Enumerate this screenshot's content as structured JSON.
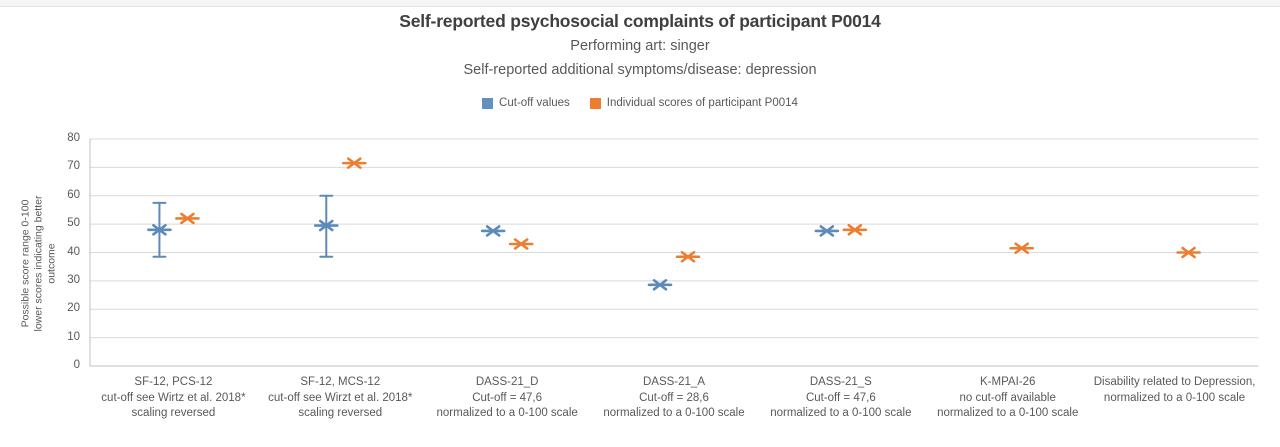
{
  "chart_data": {
    "type": "scatter",
    "title": "Self-reported psychosocial complaints of participant P0014",
    "subtitle1": "Performing art: singer",
    "subtitle2": "Self-reported additional symptoms/disease: depression",
    "ylabel_lines": [
      "Possible score range 0-100",
      "lower scores indicating better",
      "outcome"
    ],
    "ylim": [
      0,
      80
    ],
    "ytick_step": 10,
    "yticks": [
      0,
      10,
      20,
      30,
      40,
      50,
      60,
      70,
      80
    ],
    "grid": "horizontal",
    "legend_position": "top",
    "legend": [
      {
        "name": "Cut-off values",
        "color": "#6590BE"
      },
      {
        "name": "Individual scores of participant P0014",
        "color": "#ED7D31"
      }
    ],
    "categories": [
      {
        "label_lines": [
          "SF-12, PCS-12",
          "cut-off see Wirtz et al. 2018*",
          "scaling reversed"
        ]
      },
      {
        "label_lines": [
          "SF-12, MCS-12",
          "cut-off see Wirzt et al. 2018*",
          "scaling reversed"
        ]
      },
      {
        "label_lines": [
          "DASS-21_D",
          "Cut-off = 47,6",
          "normalized to a 0-100 scale"
        ]
      },
      {
        "label_lines": [
          "DASS-21_A",
          "Cut-off = 28,6",
          "normalized to a 0-100 scale"
        ]
      },
      {
        "label_lines": [
          "DASS-21_S",
          "Cut-off = 47,6",
          "normalized to a 0-100 scale"
        ]
      },
      {
        "label_lines": [
          "K-MPAI-26",
          "no cut-off available",
          "normalized to a 0-100 scale"
        ]
      },
      {
        "label_lines": [
          "Disability related to Depression,",
          "normalized to a 0-100 scale"
        ]
      }
    ],
    "series": [
      {
        "name": "Cut-off values",
        "color": "#5D8BB9",
        "marker": "x-dash",
        "values": [
          48,
          49.5,
          47.6,
          28.6,
          47.6,
          null,
          null
        ],
        "error_bars": [
          [
            38.5,
            57.5
          ],
          [
            38.5,
            60
          ],
          null,
          null,
          null,
          null,
          null
        ]
      },
      {
        "name": "Individual scores of participant P0014",
        "color": "#ED7D31",
        "marker": "x-dash",
        "values": [
          52,
          71.5,
          43,
          38.5,
          48,
          41.5,
          40
        ],
        "error_bars": [
          null,
          null,
          null,
          null,
          null,
          null,
          null
        ]
      }
    ],
    "colors": {
      "gridline": "#D9D9D9",
      "axis_line": "#C0C0C0",
      "title_text": "#3F3F3F",
      "body_text": "#595959"
    }
  }
}
